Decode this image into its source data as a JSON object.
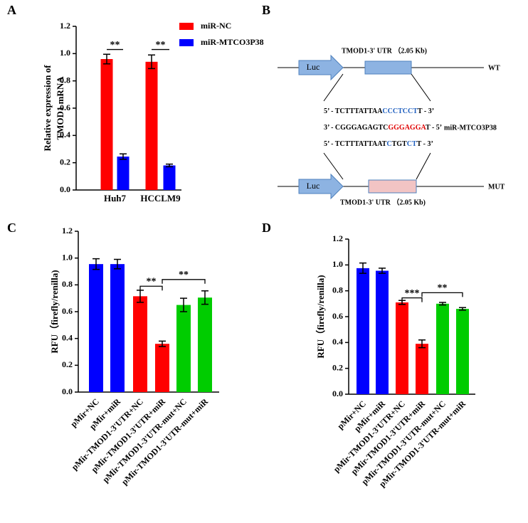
{
  "panel_labels": [
    "A",
    "B",
    "C",
    "D"
  ],
  "chart_data": [
    {
      "type": "bar",
      "ylabel": [
        "Relative expression of",
        "TMOD1 mRNA"
      ],
      "categories": [
        "Huh7",
        "HCCLM9"
      ],
      "series": [
        {
          "name": "miR-NC",
          "color": "#ff0000",
          "values": [
            0.96,
            0.94
          ],
          "errors": [
            0.035,
            0.05
          ]
        },
        {
          "name": "miR-MTCO3P38",
          "color": "#0000ff",
          "values": [
            0.245,
            0.18
          ],
          "errors": [
            0.02,
            0.01
          ]
        }
      ],
      "ylim": [
        0,
        1.2
      ],
      "yticks": [
        {
          "value": 0,
          "label": "0.0"
        },
        0.2,
        0.4,
        0.6,
        0.8,
        {
          "value": 1,
          "label": "1.0"
        },
        1.2
      ],
      "annotations": [
        "**",
        "**"
      ]
    },
    {
      "type": "bar",
      "ylabel": [
        "RFU（firefly/renilla)"
      ],
      "categories": [
        "pMir+NC",
        "pMir+miR",
        "pMir-TMOD1-3'UTR+NC",
        "pMir-TMOD1-3'UTR+miR",
        "pMir-TMOD1-3'UTR-mut+NC",
        "pMir-TMOD1-3'UTR-mut+miR"
      ],
      "values": [
        0.955,
        0.955,
        0.715,
        0.36,
        0.65,
        0.705
      ],
      "errors": [
        0.04,
        0.035,
        0.045,
        0.02,
        0.05,
        0.05
      ],
      "colors": [
        "#0000ff",
        "#0000ff",
        "#ff0000",
        "#ff0000",
        "#00cc00",
        "#00cc00"
      ],
      "ylim": [
        0,
        1.2
      ],
      "yticks": [
        {
          "value": 0,
          "label": "0.0"
        },
        0.2,
        0.4,
        0.6,
        0.8,
        {
          "value": 1,
          "label": "1.0"
        },
        1.2
      ],
      "annotations": [
        "**",
        "**"
      ]
    },
    {
      "type": "bar",
      "ylabel": [
        "RFU（firefly/renilla)"
      ],
      "categories": [
        "pMir+NC",
        "pMir+miR",
        "pMir-TMOD1-3'UTR+NC",
        "pMir-TMOD1-3'UTR+miR",
        "pMir-TMOD1-3'UTR-mut+NC",
        "pMir-TMOD1-3'UTR-mut+miR"
      ],
      "values": [
        0.975,
        0.955,
        0.71,
        0.39,
        0.7,
        0.66
      ],
      "errors": [
        0.04,
        0.02,
        0.015,
        0.03,
        0.01,
        0.01
      ],
      "colors": [
        "#0000ff",
        "#0000ff",
        "#ff0000",
        "#ff0000",
        "#00cc00",
        "#00cc00"
      ],
      "ylim": [
        0,
        1.2
      ],
      "yticks": [
        {
          "value": 0,
          "label": "0.0"
        },
        0.2,
        0.4,
        0.6,
        0.8,
        {
          "value": 1,
          "label": "1.0"
        },
        1.2
      ],
      "annotations": [
        "***",
        "**"
      ]
    }
  ],
  "diagram": {
    "wt_label": "TMOD1-3' UTR （2.05 Kb)",
    "wt_luc": "Luc",
    "wt": "WT",
    "wt_seq": [
      "5’ - TCTTTATTAA",
      "CCCTCCT",
      "T - 3’"
    ],
    "mir_seq": [
      "3’ - CGGGAGAGTC",
      "GGGAGGA",
      "T - 5’"
    ],
    "mir_name": "miR-MTCO3P38",
    "mut_seq": [
      "5’ - TCTTTATTAAT",
      "C",
      "TGT",
      "CT",
      "T - 3’"
    ],
    "mut_luc": "Luc",
    "mut": "MUT",
    "mut_label": "TMOD1-3' UTR （2.05 Kb)"
  }
}
